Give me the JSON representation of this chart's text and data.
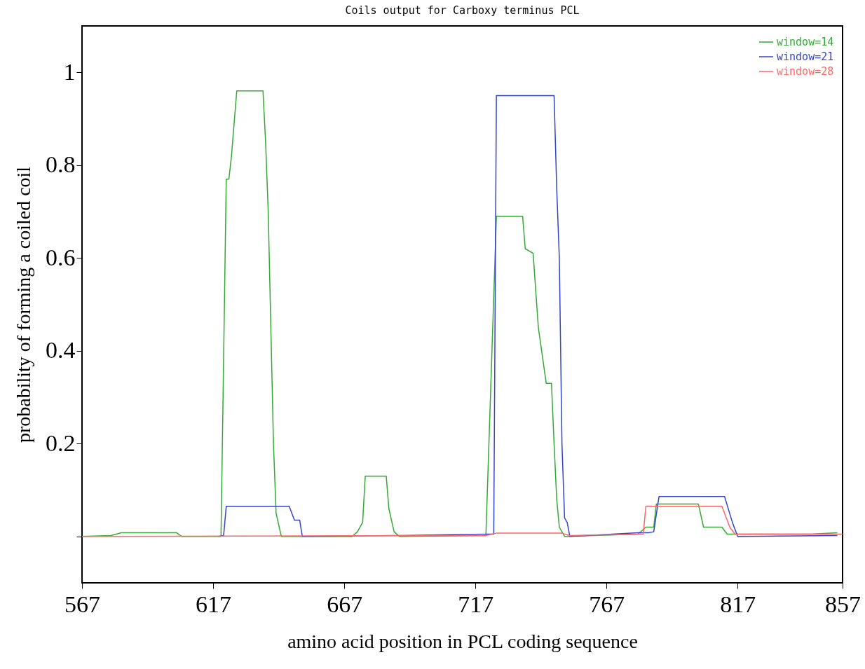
{
  "chart_data": {
    "type": "line",
    "title": "Coils output for Carboxy terminus PCL",
    "xlabel": "amino acid position in PCL coding sequence",
    "ylabel": "probability of forming a coiled coil",
    "xlim": [
      567,
      857
    ],
    "ylim": [
      -0.1,
      1.1
    ],
    "xticks": [
      567,
      617,
      667,
      717,
      767,
      817,
      857
    ],
    "yticks": [
      {
        "value": 0,
        "label": null
      },
      0.2,
      0.4,
      0.6,
      0.8,
      1
    ],
    "grid": false,
    "legend": "top right",
    "marker": "none",
    "line_style": "solid",
    "series": [
      {
        "name": "window=14",
        "color": "#33aa33",
        "x": [
          567,
          578,
          582,
          603,
          605,
          620,
          622,
          623,
          624,
          626,
          636,
          637,
          638,
          639,
          640,
          641,
          643,
          670,
          672,
          674,
          675,
          683,
          684,
          686,
          688,
          721,
          725,
          735,
          736,
          739,
          741,
          744,
          746,
          747,
          748,
          749,
          751,
          779,
          782,
          785,
          786,
          802,
          804,
          811,
          813,
          845,
          855
        ],
        "values": [
          0,
          0.002,
          0.008,
          0.008,
          0,
          0,
          0.77,
          0.77,
          0.82,
          0.96,
          0.96,
          0.85,
          0.7,
          0.45,
          0.2,
          0.05,
          0,
          0,
          0.01,
          0.03,
          0.13,
          0.13,
          0.06,
          0.01,
          0,
          0.002,
          0.69,
          0.69,
          0.62,
          0.61,
          0.45,
          0.33,
          0.33,
          0.2,
          0.08,
          0.02,
          0,
          0.005,
          0.02,
          0.02,
          0.07,
          0.07,
          0.02,
          0.02,
          0.005,
          0.005,
          0.008
        ]
      },
      {
        "name": "window=21",
        "color": "#3344cc",
        "x": [
          619,
          621,
          622,
          646,
          648,
          650,
          651,
          686,
          688,
          721,
          724,
          725,
          747,
          748,
          749,
          750,
          751,
          752,
          753,
          779,
          783,
          785,
          787,
          812,
          815,
          817,
          855
        ],
        "values": [
          0,
          0.002,
          0.065,
          0.065,
          0.035,
          0.035,
          0,
          0.002,
          0.002,
          0.005,
          0.005,
          0.95,
          0.95,
          0.75,
          0.6,
          0.2,
          0.04,
          0.03,
          0,
          0.008,
          0.008,
          0.01,
          0.086,
          0.086,
          0.03,
          0,
          0.002
        ]
      },
      {
        "name": "window=28",
        "color": "#ff6666",
        "x": [
          567,
          721,
          725,
          750,
          753,
          779,
          781,
          782,
          811,
          814,
          816,
          857
        ],
        "values": [
          0,
          0.002,
          0.007,
          0.007,
          0.002,
          0.005,
          0.005,
          0.065,
          0.065,
          0.02,
          0.005,
          0.005
        ]
      }
    ]
  }
}
